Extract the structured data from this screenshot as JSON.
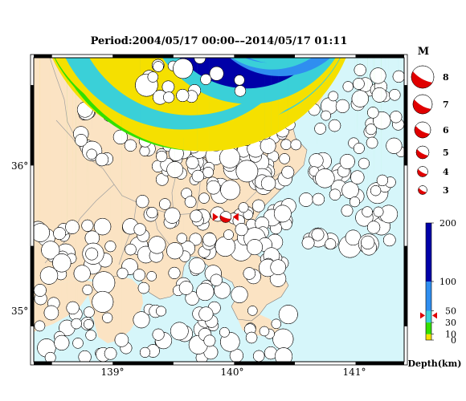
{
  "title": "Period:2004/05/17 00:00––2014/05/17 01:11",
  "map": {
    "lon_ticks": [
      "139°",
      "140°",
      "141°"
    ],
    "lat_ticks": [
      "36°",
      "35°"
    ],
    "lon_values": [
      139,
      140,
      141
    ],
    "lat_values": [
      36,
      35
    ],
    "lon_range": [
      138.35,
      141.4
    ],
    "lat_range": [
      34.78,
      36.67
    ],
    "land_color": "#fbe3c3",
    "sea_color": "#d6f6fa",
    "highlight_event": {
      "lon": 139.93,
      "lat": 35.68,
      "color": "#e00000"
    }
  },
  "magnitude_legend": {
    "title": "M",
    "levels": [
      "8",
      "7",
      "6",
      "5",
      "4",
      "3"
    ],
    "values": [
      8,
      7,
      6,
      5,
      4,
      3
    ],
    "color": "#e00000"
  },
  "depth_scale": {
    "label": "Depth(km)",
    "ticks": [
      "200",
      "100",
      "50",
      "30",
      "10",
      "0"
    ],
    "tick_values": [
      200,
      100,
      50,
      30,
      10,
      0
    ],
    "colors": {
      "0-10": "#f5e000",
      "10-30": "#33e000",
      "30-50": "#3ad0d8",
      "50-100": "#2f8ef0",
      "100-200": "#0000a8"
    },
    "marker_value": 42
  }
}
